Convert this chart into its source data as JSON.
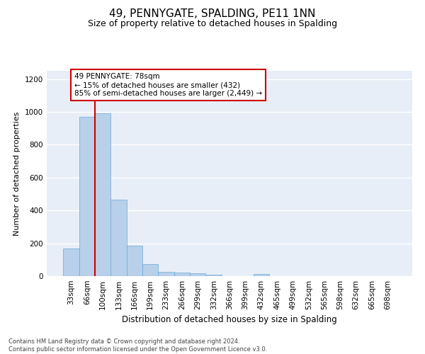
{
  "title": "49, PENNYGATE, SPALDING, PE11 1NN",
  "subtitle": "Size of property relative to detached houses in Spalding",
  "xlabel": "Distribution of detached houses by size in Spalding",
  "ylabel": "Number of detached properties",
  "footer_line1": "Contains HM Land Registry data © Crown copyright and database right 2024.",
  "footer_line2": "Contains public sector information licensed under the Open Government Licence v3.0.",
  "categories": [
    "33sqm",
    "66sqm",
    "100sqm",
    "133sqm",
    "166sqm",
    "199sqm",
    "233sqm",
    "266sqm",
    "299sqm",
    "332sqm",
    "366sqm",
    "399sqm",
    "432sqm",
    "465sqm",
    "499sqm",
    "532sqm",
    "565sqm",
    "598sqm",
    "632sqm",
    "665sqm",
    "698sqm"
  ],
  "values": [
    170,
    970,
    990,
    465,
    185,
    75,
    28,
    22,
    18,
    10,
    0,
    0,
    15,
    0,
    0,
    0,
    0,
    0,
    0,
    0,
    0
  ],
  "bar_color": "#b8d0ea",
  "bar_edge_color": "#6aaad4",
  "annotation_text": "49 PENNYGATE: 78sqm\n← 15% of detached houses are smaller (432)\n85% of semi-detached houses are larger (2,449) →",
  "vline_x": 1.5,
  "vline_color": "#cc0000",
  "annotation_box_edge_color": "#cc0000",
  "annotation_fontsize": 7.5,
  "title_fontsize": 11,
  "subtitle_fontsize": 9,
  "xlabel_fontsize": 8.5,
  "ylabel_fontsize": 8,
  "tick_fontsize": 7.5,
  "ylim": [
    0,
    1250
  ],
  "yticks": [
    0,
    200,
    400,
    600,
    800,
    1000,
    1200
  ],
  "background_color": "#e8eef7",
  "grid_color": "#ffffff"
}
